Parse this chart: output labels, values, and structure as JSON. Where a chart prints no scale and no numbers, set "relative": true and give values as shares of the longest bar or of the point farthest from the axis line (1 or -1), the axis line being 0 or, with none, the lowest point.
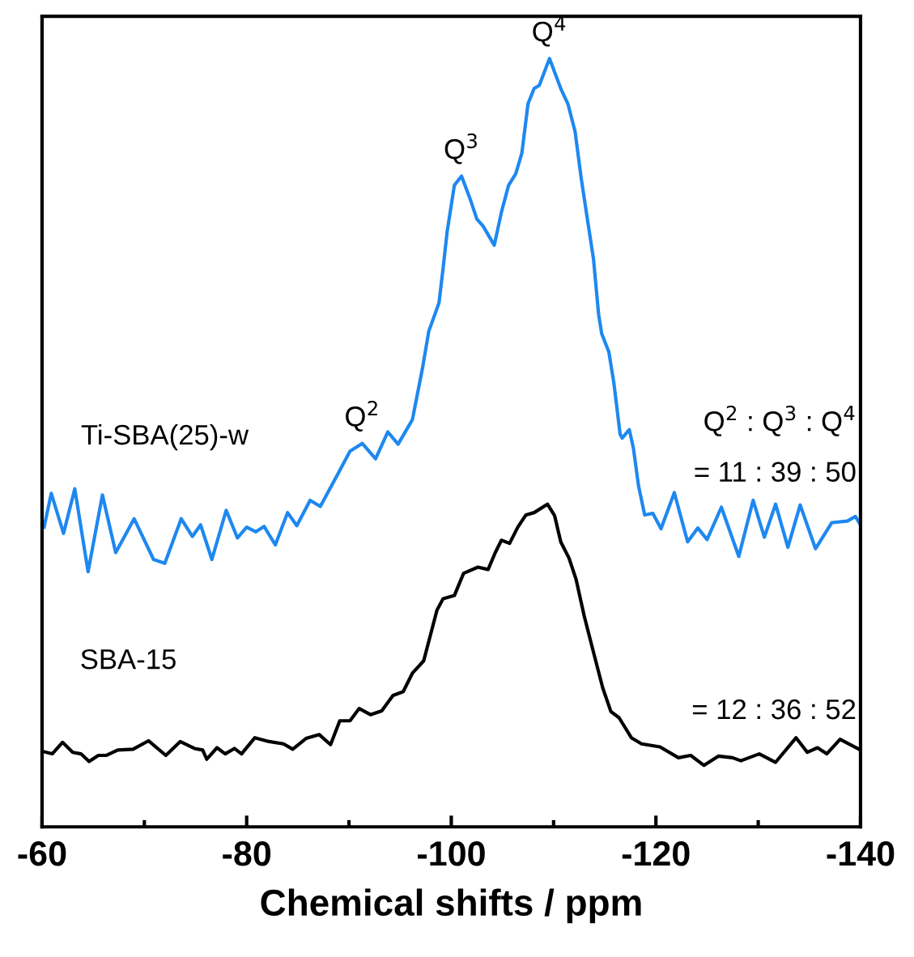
{
  "chart_data": {
    "type": "line",
    "relative": true,
    "xlabel": "Chemical shifts / ppm",
    "xlim": [
      -60,
      -140
    ],
    "xticks": [
      -60,
      {
        "value": -70,
        "label": null
      },
      -80,
      {
        "value": -90,
        "label": null
      },
      -100,
      {
        "value": -110,
        "label": null
      },
      -120,
      {
        "value": -130,
        "label": null
      },
      -140
    ],
    "tick_labels": "x",
    "grid": false,
    "legend": false,
    "marker": "none",
    "line_style": "solid",
    "series": [
      {
        "name": "Ti-SBA(25)-w",
        "color": "#1e88f0",
        "x": [
          -60.2,
          -60.9,
          -62.1,
          -63.2,
          -64.5,
          -65.9,
          -67.2,
          -69.0,
          -70.9,
          -72.0,
          -73.6,
          -74.7,
          -75.5,
          -76.6,
          -78.0,
          -79.1,
          -80.0,
          -80.9,
          -81.7,
          -82.8,
          -84.0,
          -84.9,
          -86.2,
          -87.2,
          -89.1,
          -90.1,
          -91.3,
          -92.6,
          -93.8,
          -94.8,
          -96.2,
          -97.2,
          -97.8,
          -98.8,
          -99.2,
          -99.6,
          -100.3,
          -101.0,
          -101.9,
          -102.5,
          -103.1,
          -104.2,
          -104.9,
          -105.6,
          -106.3,
          -106.9,
          -107.5,
          -108.1,
          -108.6,
          -109.6,
          -110.7,
          -111.4,
          -112.1,
          -112.7,
          -113.2,
          -113.9,
          -114.4,
          -114.7,
          -115.4,
          -115.9,
          -116.5,
          -116.7,
          -117.4,
          -117.8,
          -118.3,
          -118.9,
          -119.7,
          -120.5,
          -121.8,
          -123.1,
          -124.1,
          -125.0,
          -126.4,
          -128.1,
          -129.5,
          -130.6,
          -131.7,
          -132.9,
          -134.1,
          -135.6,
          -137.2,
          -138.7,
          -139.5,
          -140.0
        ],
        "values": [
          0.39,
          0.434,
          0.382,
          0.44,
          0.332,
          0.432,
          0.357,
          0.401,
          0.348,
          0.343,
          0.401,
          0.378,
          0.393,
          0.348,
          0.412,
          0.376,
          0.39,
          0.384,
          0.391,
          0.367,
          0.409,
          0.392,
          0.425,
          0.417,
          0.464,
          0.489,
          0.499,
          0.479,
          0.514,
          0.498,
          0.53,
          0.598,
          0.645,
          0.682,
          0.727,
          0.775,
          0.835,
          0.847,
          0.815,
          0.791,
          0.782,
          0.757,
          0.8,
          0.835,
          0.85,
          0.877,
          0.941,
          0.961,
          0.965,
          1.0,
          0.961,
          0.941,
          0.905,
          0.844,
          0.8,
          0.739,
          0.667,
          0.642,
          0.618,
          0.577,
          0.511,
          0.506,
          0.517,
          0.493,
          0.444,
          0.406,
          0.408,
          0.388,
          0.435,
          0.371,
          0.389,
          0.374,
          0.416,
          0.352,
          0.425,
          0.377,
          0.42,
          0.364,
          0.419,
          0.362,
          0.396,
          0.398,
          0.404,
          0.393
        ]
      },
      {
        "name": "SBA-15",
        "color": "#000000",
        "x": [
          -60.1,
          -61.0,
          -62.0,
          -63.0,
          -63.8,
          -64.6,
          -65.5,
          -66.3,
          -67.4,
          -68.9,
          -70.4,
          -72.1,
          -73.5,
          -74.9,
          -75.7,
          -76.1,
          -77.1,
          -77.9,
          -78.8,
          -79.5,
          -80.8,
          -82.2,
          -83.6,
          -84.5,
          -85.8,
          -87.1,
          -88.2,
          -89.1,
          -90.1,
          -91.0,
          -92.1,
          -93.2,
          -94.3,
          -95.3,
          -96.2,
          -97.3,
          -98.6,
          -99.2,
          -100.3,
          -101.2,
          -102.6,
          -103.6,
          -104.3,
          -104.9,
          -105.7,
          -106.5,
          -107.3,
          -108.1,
          -109.4,
          -110.1,
          -110.7,
          -111.5,
          -112.2,
          -113.0,
          -114.0,
          -114.8,
          -115.6,
          -116.4,
          -117.6,
          -118.6,
          -120.4,
          -122.2,
          -123.4,
          -124.7,
          -126.1,
          -127.5,
          -128.3,
          -130.1,
          -131.7,
          -133.7,
          -134.8,
          -135.8,
          -136.7,
          -138.0,
          -140.0
        ],
        "values": [
          0.098,
          0.095,
          0.11,
          0.097,
          0.095,
          0.085,
          0.093,
          0.093,
          0.1,
          0.101,
          0.112,
          0.093,
          0.111,
          0.102,
          0.1,
          0.088,
          0.103,
          0.095,
          0.102,
          0.095,
          0.116,
          0.111,
          0.108,
          0.101,
          0.115,
          0.12,
          0.107,
          0.138,
          0.138,
          0.154,
          0.146,
          0.151,
          0.171,
          0.176,
          0.2,
          0.216,
          0.282,
          0.297,
          0.301,
          0.33,
          0.338,
          0.335,
          0.357,
          0.373,
          0.369,
          0.39,
          0.406,
          0.409,
          0.42,
          0.405,
          0.371,
          0.35,
          0.322,
          0.274,
          0.222,
          0.181,
          0.15,
          0.142,
          0.116,
          0.108,
          0.104,
          0.09,
          0.093,
          0.08,
          0.092,
          0.09,
          0.086,
          0.095,
          0.084,
          0.116,
          0.097,
          0.103,
          0.095,
          0.114,
          0.1
        ]
      }
    ],
    "annotations": [
      {
        "text": "Q$^{2}$",
        "x": -91.3,
        "y": 0.499
      },
      {
        "text": "Q$^{3}$",
        "x": -101.0,
        "y": 0.847
      },
      {
        "text": "Q$^{4}$",
        "x": -109.6,
        "y": 1.0
      },
      "Q$^{2}$ : Q$^{3}$ : Q$^{4}$",
      "= 11 : 39 : 50",
      "= 12 : 36 : 52"
    ]
  }
}
